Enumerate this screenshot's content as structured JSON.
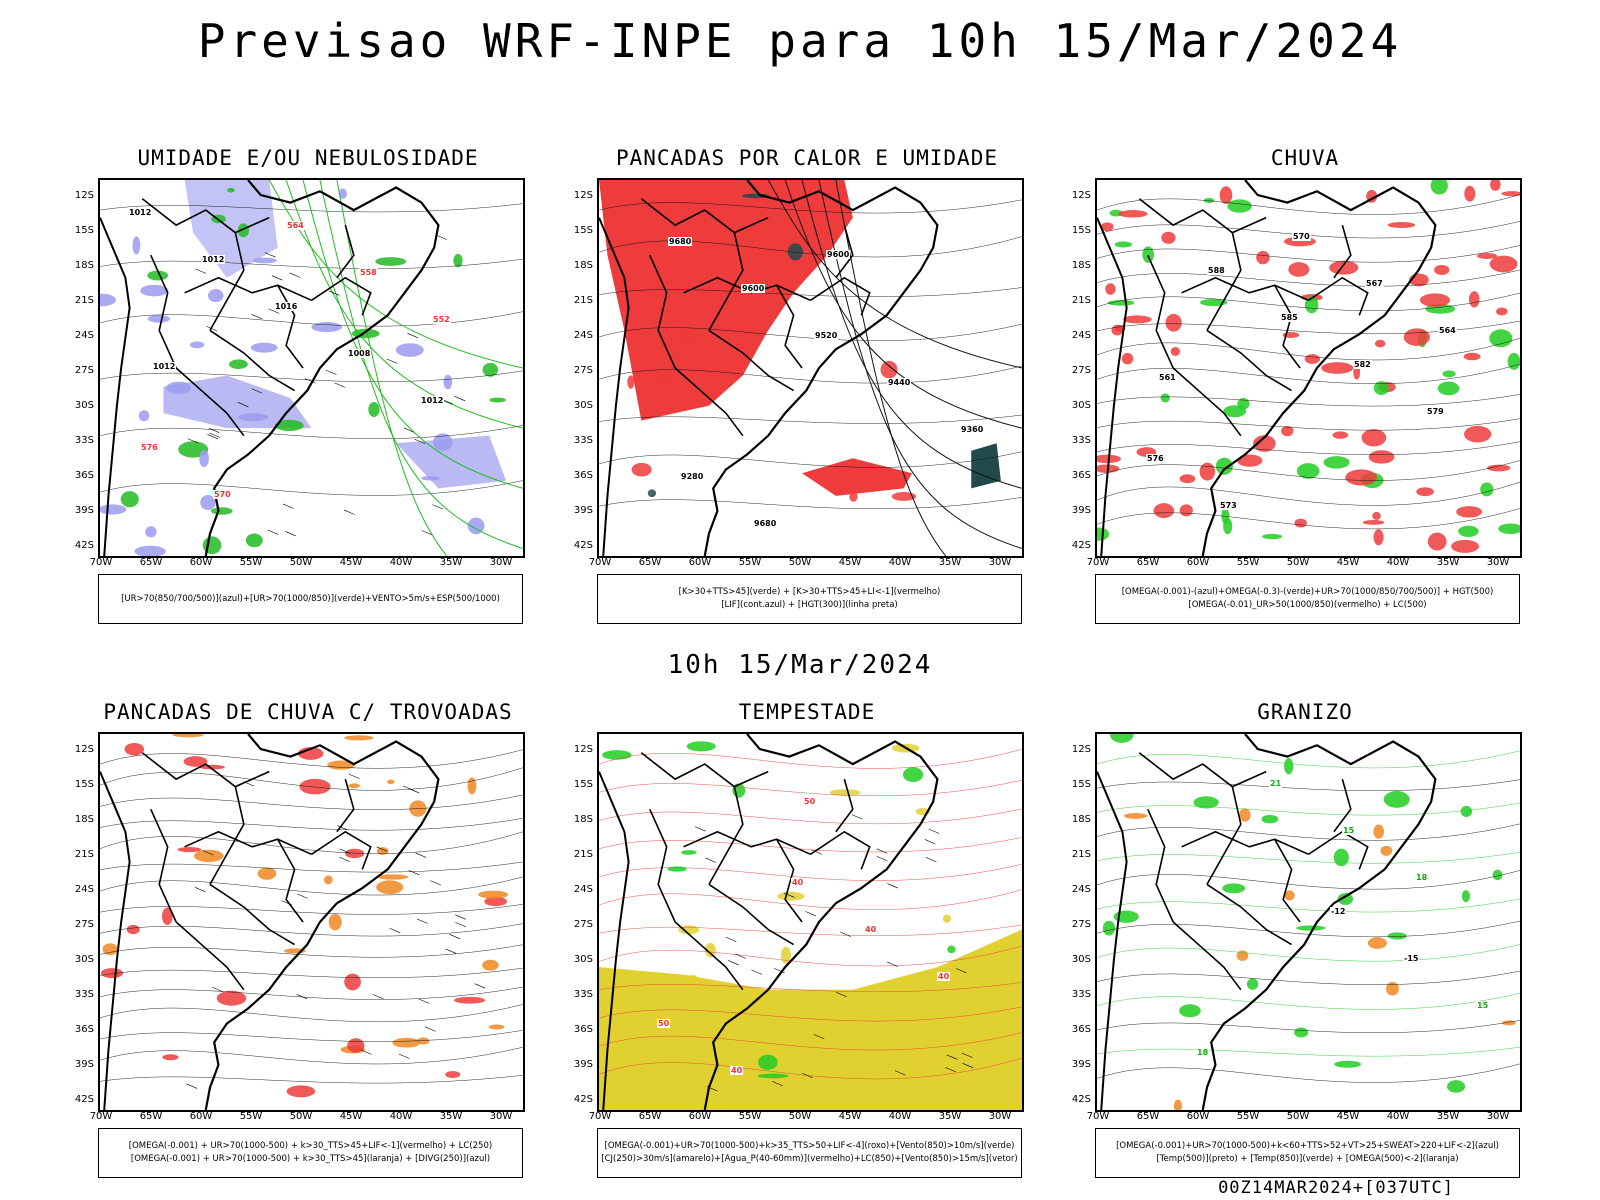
{
  "title": "Previsao WRF-INPE  para 10h 15/Mar/2024",
  "subtitle": "10h 15/Mar/2024",
  "footer": "00Z14MAR2024+[037UTC]",
  "lat_labels": [
    "12S",
    "15S",
    "18S",
    "21S",
    "24S",
    "27S",
    "30S",
    "33S",
    "36S",
    "39S",
    "42S"
  ],
  "lon_labels": [
    "70W",
    "65W",
    "60W",
    "55W",
    "50W",
    "45W",
    "40W",
    "35W",
    "30W"
  ],
  "panels": [
    {
      "title": "UMIDADE E/OU NEBULOSIDADE",
      "legend": [
        "[UR>70(850/700/500)](azul)+[UR>70(1000/850)](verde)+VENTO>5m/s+ESP(500/1000)"
      ],
      "colors": {
        "primary": "#9b9bf0",
        "secondary": "#22bb22",
        "contour": "#ee3333"
      },
      "contour_labels": [
        "1012",
        "1012",
        "1016",
        "1008",
        "1012",
        "576",
        "570",
        "564",
        "558",
        "552",
        "1012"
      ]
    },
    {
      "title": "PANCADAS POR CALOR E UMIDADE",
      "legend": [
        "[K>30+TTS>45](verde) + [K>30+TTS>45+LI<-1](vermelho)",
        "[LIF](cont.azul) + [HGT(300)](linha preta)"
      ],
      "colors": {
        "primary": "#ee3b3b",
        "secondary": "#224a4a",
        "contour": "#3344ee"
      },
      "contour_labels": [
        "9680",
        "9600",
        "9520",
        "9440",
        "9360",
        "9280",
        "9680",
        "9600"
      ]
    },
    {
      "title": "CHUVA",
      "legend": [
        "[OMEGA(-0.001)-(azul)+OMEGA(-0.3)-(verde)+UR>70(1000/850/700/500)] + HGT(500)",
        "[OMEGA(-0.01)_UR>50(1000/850)(vermelho) + LC(500)"
      ],
      "colors": {
        "primary": "#ee3b3b",
        "secondary": "#22cc22",
        "contour": "#2233ee"
      },
      "contour_labels": [
        "588",
        "585",
        "582",
        "579",
        "576",
        "573",
        "570",
        "567",
        "564",
        "561"
      ]
    },
    {
      "title": "PANCADAS DE CHUVA C/ TROVOADAS",
      "legend": [
        "[OMEGA(-0.001) + UR>70(1000-500) + k>30_TTS>45+LIF<-1](vermelho) + LC(250)",
        "[OMEGA(-0.001) + UR>70(1000-500) + k>30_TTS>45](laranja) + [DIVG(250)](azul)"
      ],
      "colors": {
        "primary": "#ee3b3b",
        "secondary": "#ee8822",
        "contour": "#2244ee"
      },
      "contour_labels": []
    },
    {
      "title": "TEMPESTADE",
      "legend": [
        "[OMEGA(-0.001)+UR>70(1000-500)+k>35_TTS>50+LIF<-4](roxo)+[Vento(850)>10m/s](verde)",
        "[CJ(250)>30m/s](amarelo)+[Agua_P(40-60mm)](vermelho)+LC(850)+[Vento(850)>15m/s](vetor)"
      ],
      "colors": {
        "primary": "#e0d030",
        "secondary": "#22cc22",
        "contour": "#ee3b3b"
      },
      "contour_labels": [
        "40",
        "40",
        "40",
        "50",
        "40",
        "50"
      ]
    },
    {
      "title": "GRANIZO",
      "legend": [
        "[OMEGA(-0.001)+UR>70(1000-500)+k<60+TTS>52+VT>25+SWEAT>220+LIF<-2](azul)",
        "[Temp(500)](preto) + [Temp(850)](verde) + [OMEGA(500)<-2](laranja)"
      ],
      "colors": {
        "primary": "#22cc22",
        "secondary": "#ee8822",
        "contour": "#111111"
      },
      "contour_labels": [
        "-12",
        "-15",
        "15",
        "18",
        "21",
        "15",
        "18"
      ]
    }
  ]
}
